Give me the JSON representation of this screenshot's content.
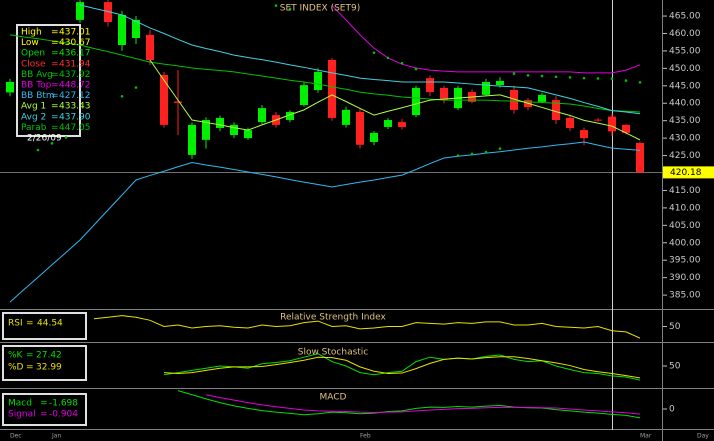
{
  "chart_data": [
    {
      "type": "candlestick",
      "title": "SET INDEX (SET9)",
      "categories": [
        "Dec",
        null,
        null,
        "Jan",
        null,
        null,
        null,
        null,
        null,
        null,
        null,
        null,
        null,
        null,
        null,
        null,
        null,
        null,
        null,
        null,
        null,
        null,
        null,
        null,
        null,
        "Feb",
        null,
        null,
        null,
        null,
        null,
        null,
        null,
        null,
        null,
        null,
        null,
        null,
        null,
        null,
        null,
        null,
        null,
        null,
        null,
        "Mar"
      ],
      "periodicity": "Day",
      "open": [
        443.1,
        null,
        null,
        null,
        null,
        463.9,
        null,
        469,
        456.7,
        458.7,
        459.6,
        448.1,
        440.5,
        425.2,
        429.5,
        432.9,
        430.9,
        430,
        434.6,
        436.6,
        435.2,
        439.5,
        443.8,
        452.4,
        433.8,
        437.5,
        428.9,
        433.2,
        434.6,
        436.6,
        447.2,
        444.4,
        438.6,
        443.2,
        442.4,
        445.2,
        443.8,
        440.9,
        440.4,
        440.9,
        435.8,
        432.3,
        435.3,
        436.17,
        433.8,
        428.6
      ],
      "high": [
        447,
        null,
        null,
        null,
        null,
        469.6,
        null,
        469.6,
        466.5,
        465,
        461,
        449,
        449.5,
        434.5,
        436,
        436.5,
        434.5,
        433,
        439.5,
        437.5,
        438,
        446,
        450,
        453,
        439,
        438.5,
        432,
        435.8,
        435.5,
        445,
        448,
        445,
        445,
        444,
        447,
        447.5,
        445,
        441.5,
        443,
        442,
        436.5,
        433,
        435.8,
        437.01,
        434,
        429
      ],
      "low": [
        442,
        null,
        null,
        null,
        null,
        463,
        null,
        462,
        455,
        457,
        451,
        433,
        430.9,
        424,
        427,
        432,
        430,
        429.5,
        434,
        433,
        434.5,
        439,
        443,
        435,
        433,
        427,
        428,
        432.6,
        432.5,
        436,
        442,
        440,
        438,
        440,
        442,
        444.5,
        437,
        438,
        440,
        434,
        432,
        428,
        434.8,
        430.67,
        431,
        420
      ],
      "close": [
        446.1,
        null,
        null,
        null,
        null,
        469,
        null,
        463.3,
        465.3,
        463.9,
        452.4,
        433.8,
        440.1,
        433.8,
        435.2,
        435.8,
        433.8,
        432.3,
        438.6,
        433.8,
        437.5,
        445.2,
        449,
        435.8,
        438.1,
        428.1,
        431.5,
        435.2,
        433.2,
        444.4,
        443.2,
        440.9,
        444.4,
        440.4,
        446.1,
        446.4,
        438.1,
        438.9,
        442.4,
        435.2,
        432.9,
        430,
        435.2,
        431.94,
        431.5,
        420.18
      ],
      "up_color": "#00ee00",
      "down_color": "#ff2020",
      "separator": "=",
      "readout": [
        {
          "name": "High",
          "value": 437.01,
          "color": "#ffff00"
        },
        {
          "name": "Low",
          "value": 430.67,
          "color": "#ffff00"
        },
        {
          "name": "Open",
          "value": 436.17,
          "color": "#00e000"
        },
        {
          "name": "Close",
          "value": 431.94,
          "color": "#ff3030"
        }
      ],
      "readout_date": "2/26/09",
      "series": [
        {
          "name": "BB Avg",
          "color": "#00c000",
          "readout": 437.92,
          "values": [
            459.6,
            459.0,
            458.5,
            457.9,
            457.3,
            456.7,
            455.7,
            454.8,
            453.8,
            452.8,
            451.8,
            451.2,
            450.7,
            450.1,
            449.7,
            449.4,
            449.0,
            448.4,
            447.8,
            447.2,
            446.6,
            446.1,
            445.5,
            444.7,
            444.0,
            443.2,
            442.7,
            442.3,
            441.8,
            441.5,
            441.2,
            440.9,
            440.9,
            440.9,
            440.9,
            440.7,
            440.6,
            440.4,
            440.2,
            440.0,
            439.8,
            439.2,
            438.5,
            437.9,
            437.7,
            437.5
          ]
        },
        {
          "name": "BB Top",
          "color": "#e000e0",
          "readout": 448.72,
          "values": [
            null,
            null,
            null,
            null,
            null,
            null,
            null,
            null,
            null,
            null,
            null,
            null,
            null,
            null,
            null,
            null,
            null,
            null,
            null,
            null,
            null,
            null,
            null,
            468,
            463.9,
            459.6,
            455.8,
            453,
            451.2,
            450.1,
            449.5,
            449.2,
            449,
            449,
            449,
            449,
            449,
            449,
            449,
            449,
            449,
            448.7,
            448.7,
            448.72,
            449.5,
            451
          ]
        },
        {
          "name": "BB Btm",
          "color": "#30b8f0",
          "readout": 427.12,
          "values": [
            383,
            386.6,
            390.1,
            393.7,
            397.2,
            400.8,
            405.1,
            409.4,
            413.7,
            418,
            419.3,
            420.5,
            421.8,
            423,
            422.3,
            421.7,
            421,
            420.3,
            419.6,
            418.9,
            418.1,
            417.4,
            416.7,
            416,
            416.7,
            417.4,
            418,
            418.7,
            419.4,
            421,
            422.7,
            424.3,
            424.8,
            425.2,
            425.7,
            426.1,
            426.6,
            427.1,
            427.5,
            428,
            428.4,
            428.9,
            428,
            427.12,
            426.8,
            426.5
          ]
        },
        {
          "name": "Avg 1",
          "color": "#b0ff40",
          "readout": 433.43,
          "values": [
            null,
            null,
            null,
            null,
            null,
            null,
            null,
            null,
            null,
            null,
            452.4,
            446.6,
            440.9,
            435.2,
            434.5,
            433.8,
            433,
            432.3,
            433.8,
            435.2,
            436.7,
            438.1,
            440.3,
            442.4,
            440.5,
            438.5,
            436.6,
            437.7,
            438.7,
            439.8,
            440.9,
            441.2,
            441.5,
            441.8,
            442.1,
            442.4,
            441.2,
            440,
            438.8,
            437.6,
            436.5,
            435.1,
            434.3,
            433.43,
            431.5,
            429.5
          ]
        },
        {
          "name": "Avg 2",
          "color": "#40d0e0",
          "readout": {
            "value": 437.9,
            "label": "437.90"
          },
          "values": [
            null,
            null,
            null,
            null,
            null,
            468.2,
            467.2,
            466.3,
            465.3,
            463.5,
            461.6,
            460,
            458.3,
            456.7,
            455.7,
            454.8,
            453.8,
            453.1,
            452.5,
            451.8,
            451,
            450.3,
            449.5,
            448.7,
            448,
            447.2,
            446.8,
            446.5,
            446.1,
            446.1,
            446.1,
            446.1,
            445.8,
            445.5,
            445.2,
            444.9,
            444.7,
            444.4,
            443.4,
            442.4,
            441.4,
            440.2,
            439.1,
            437.9,
            437.5,
            437
          ]
        },
        {
          "name": "Parab",
          "color": "#00c000",
          "marker": "dot",
          "readout": 447.05,
          "values": [
            null,
            null,
            426.6,
            428.5,
            430.2,
            null,
            null,
            null,
            442,
            444.5,
            null,
            null,
            null,
            null,
            null,
            null,
            null,
            null,
            null,
            468,
            467,
            null,
            null,
            null,
            null,
            null,
            454.5,
            453,
            451.5,
            449.8,
            null,
            null,
            425,
            425.5,
            426,
            427,
            448.5,
            448,
            447.8,
            447.6,
            447.4,
            447.2,
            447.1,
            447.05,
            446.5,
            446
          ]
        }
      ],
      "ylim": [
        381.3,
        469.6
      ],
      "yticks": [
        {
          "value": 385,
          "label": "385.00"
        },
        {
          "value": 390,
          "label": "390.00"
        },
        {
          "value": 395,
          "label": "395.00"
        },
        {
          "value": 400,
          "label": "400.00"
        },
        {
          "value": 405,
          "label": "405.00"
        },
        {
          "value": 410,
          "label": "410.00"
        },
        {
          "value": 415,
          "label": "415.00"
        },
        {
          "value": 420,
          "label": "420.00"
        },
        {
          "value": 425,
          "label": "425.00"
        },
        {
          "value": 430,
          "label": "430.00"
        },
        {
          "value": 435,
          "label": "435.00"
        },
        {
          "value": 440,
          "label": "440.00"
        },
        {
          "value": 445,
          "label": "445.00"
        },
        {
          "value": 450,
          "label": "450.00"
        },
        {
          "value": 455,
          "label": "455.00"
        },
        {
          "value": 460,
          "label": "460.00"
        },
        {
          "value": 465,
          "label": "465.00"
        }
      ]
    },
    {
      "type": "line",
      "title": "Relative Strength Index",
      "separator": "=",
      "series": [
        {
          "name": "RSI",
          "color": "#e8e000",
          "readout": 44.54,
          "values": [
            null,
            null,
            null,
            null,
            null,
            null,
            60,
            62,
            64,
            62,
            58,
            50,
            52,
            48,
            50,
            51,
            49,
            48,
            52,
            50,
            51,
            55,
            57,
            50,
            51,
            47,
            48,
            50,
            50,
            55,
            54,
            53,
            55,
            54,
            56,
            56,
            52,
            52,
            54,
            50,
            49,
            48,
            50,
            44.54,
            43,
            35
          ]
        }
      ],
      "ylim": [
        30,
        70
      ],
      "yticks": [
        50
      ]
    },
    {
      "type": "line",
      "title": "Slow Stochastic",
      "separator": "=",
      "series": [
        {
          "name": "%K",
          "color": "#00e000",
          "readout": 27.42,
          "values": [
            null,
            null,
            null,
            null,
            null,
            null,
            null,
            null,
            null,
            null,
            null,
            30,
            35,
            40,
            45,
            50,
            48,
            45,
            55,
            58,
            62,
            70,
            78,
            60,
            50,
            35,
            30,
            35,
            38,
            60,
            70,
            65,
            68,
            66,
            72,
            75,
            65,
            60,
            62,
            50,
            42,
            35,
            33,
            27.42,
            25,
            18
          ]
        },
        {
          "name": "%D",
          "color": "#e8e000",
          "readout": 32.99,
          "values": [
            null,
            null,
            null,
            null,
            null,
            null,
            null,
            null,
            null,
            null,
            null,
            35,
            33,
            35,
            40,
            45,
            48,
            48,
            49,
            53,
            58,
            63,
            70,
            69,
            63,
            48,
            38,
            33,
            34,
            44,
            56,
            65,
            68,
            66,
            69,
            71,
            71,
            67,
            62,
            57,
            51,
            42,
            37,
            32.99,
            28,
            23
          ]
        }
      ],
      "ylim": [
        0,
        100
      ],
      "yticks": [
        50
      ]
    },
    {
      "type": "line",
      "title": "MACD",
      "separator": "=",
      "series": [
        {
          "name": "Macd",
          "color": "#00e000",
          "readout": -1.698,
          "values": [
            null,
            null,
            null,
            null,
            null,
            null,
            null,
            null,
            null,
            null,
            null,
            null,
            5.8,
            4.5,
            3.2,
            2,
            1,
            0.2,
            -0.5,
            -1,
            -1.4,
            -1.8,
            -1.5,
            -1,
            -1.2,
            -1.5,
            -1.3,
            -0.8,
            -0.6,
            0.2,
            0.6,
            0.5,
            0.8,
            0.6,
            0.9,
            1.1,
            0.6,
            0.4,
            0.3,
            -0.2,
            -0.6,
            -1,
            -1.3,
            -1.698,
            -2,
            -2.8
          ]
        },
        {
          "name": "Signal",
          "color": "#e000e0",
          "readout": -0.904,
          "values": [
            null,
            null,
            null,
            null,
            null,
            null,
            null,
            null,
            null,
            null,
            null,
            null,
            null,
            null,
            4.5,
            3.6,
            2.8,
            2,
            1.3,
            0.7,
            0.2,
            -0.3,
            -0.6,
            -0.7,
            -0.8,
            -1,
            -1.1,
            -1,
            -0.9,
            -0.6,
            -0.3,
            -0.1,
            0.1,
            0.2,
            0.4,
            0.5,
            0.5,
            0.5,
            0.4,
            0.3,
            0,
            -0.3,
            -0.6,
            -0.904,
            -1.2,
            -1.6
          ]
        }
      ],
      "ylim": [
        -6,
        6
      ],
      "yticks": [
        0
      ]
    }
  ]
}
